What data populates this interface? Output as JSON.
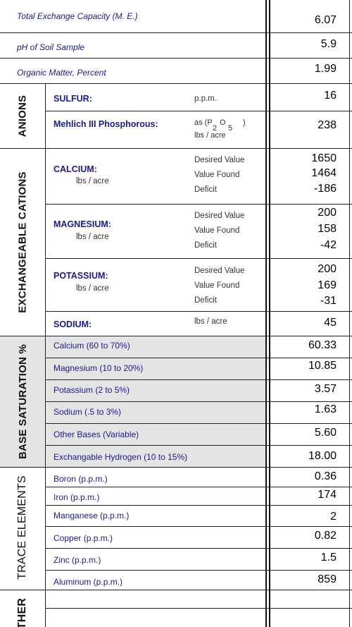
{
  "top_rows": [
    {
      "label": "Total Exchange Capacity (M. E.)",
      "value": "6.07"
    },
    {
      "label": "pH of Soil Sample",
      "value": "5.9"
    },
    {
      "label": "Organic Matter, Percent",
      "value": "1.99"
    }
  ],
  "anions": {
    "title": "ANIONS",
    "sulfur": {
      "label": "SULFUR:",
      "unit": "p.p.m.",
      "value": "16"
    },
    "phosphorous": {
      "label": "Mehlich III Phosphorous:",
      "unit_line1": "as (P",
      "unit_p_sub": "2",
      "unit_o": "O",
      "unit_o_sub": "5",
      "unit_close": ")",
      "unit_line2": "lbs / acre",
      "value": "238"
    }
  },
  "cations": {
    "title": "EXCHANGEABLE CATIONS",
    "meta_labels": [
      "Desired Value",
      "Value Found",
      "Deficit"
    ],
    "calcium": {
      "label": "CALCIUM:",
      "unit": "lbs / acre",
      "values": [
        "1650",
        "1464",
        "-186"
      ]
    },
    "magnesium": {
      "label": "MAGNESIUM:",
      "unit": "lbs / acre",
      "values": [
        "200",
        "158",
        "-42"
      ]
    },
    "potassium": {
      "label": "POTASSIUM:",
      "unit": "lbs / acre",
      "values": [
        "200",
        "169",
        "-31"
      ]
    },
    "sodium": {
      "label": "SODIUM:",
      "unit": "lbs / acre",
      "value": "45"
    }
  },
  "base_saturation": {
    "title": "BASE SATURATION %",
    "rows": [
      {
        "label": "Calcium (60 to 70%)",
        "value": "60.33"
      },
      {
        "label": "Magnesium (10 to 20%)",
        "value": "10.85"
      },
      {
        "label": "Potassium (2 to 5%)",
        "value": "3.57"
      },
      {
        "label": "Sodium (.5 to 3%)",
        "value": "1.63"
      },
      {
        "label": "Other Bases (Variable)",
        "value": "5.60"
      },
      {
        "label": "Exchangable Hydrogen (10 to 15%)",
        "value": "18.00"
      }
    ]
  },
  "trace": {
    "title": "TRACE ELEMENTS",
    "rows": [
      {
        "label": "Boron (p.p.m.)",
        "value": "0.36"
      },
      {
        "label": "Iron (p.p.m.)",
        "value": "174"
      },
      {
        "label": "Manganese (p.p.m.)",
        "value": "2"
      },
      {
        "label": "Copper (p.p.m.)",
        "value": "0.82"
      },
      {
        "label": "Zinc (p.p.m.)",
        "value": "1.5"
      },
      {
        "label": "Aluminum (p.p.m.)",
        "value": "859"
      }
    ]
  },
  "other": {
    "title": "THER"
  }
}
